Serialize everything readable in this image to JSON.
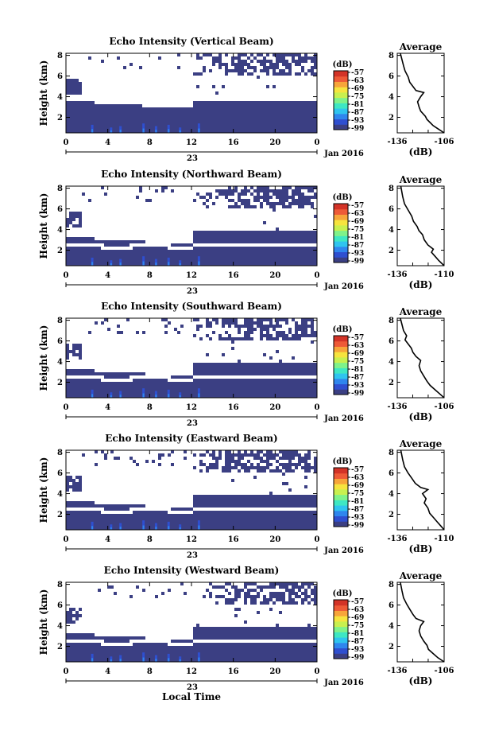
{
  "colors": {
    "echo": "#3b3f83",
    "colormap": [
      "#3b3f83",
      "#2f4fd0",
      "#2f86ee",
      "#2fc4ef",
      "#3ee7c3",
      "#7ff28a",
      "#c8f04f",
      "#f6e43e",
      "#f7a53a",
      "#ee5a37",
      "#d33327"
    ]
  },
  "colorbar": {
    "unit": "(dB)",
    "ticks": [
      "-57",
      "-63",
      "-69",
      "-75",
      "-81",
      "-87",
      "-93",
      "-99"
    ]
  },
  "shared": {
    "date_label": "Jan 2016",
    "x_axis_label": "Local Time",
    "day_label": "23"
  },
  "chart_data": [
    {
      "type": "heatmap",
      "title": "Echo Intensity (Vertical Beam)",
      "ylabel": "Height (km)",
      "x_ticks": [
        "0",
        "4",
        "8",
        "12",
        "16",
        "20",
        "0"
      ],
      "y_ticks": [
        "2",
        "4",
        "6",
        "8"
      ],
      "xlim": [
        0,
        24
      ],
      "ylim": [
        0.5,
        8.2
      ],
      "profile": {
        "title": "Average",
        "xlabel": "(dB)",
        "x_ticks": [
          "-136",
          "-106"
        ],
        "xlim": [
          -136,
          -106
        ],
        "y_ticks": [
          "2",
          "4",
          "6",
          "8"
        ],
        "ylim": [
          0.5,
          8.2
        ],
        "points": [
          [
            -106,
            0.5
          ],
          [
            -110,
            0.9
          ],
          [
            -113,
            1.2
          ],
          [
            -115,
            1.5
          ],
          [
            -117,
            1.8
          ],
          [
            -118,
            2.1
          ],
          [
            -121,
            2.6
          ],
          [
            -122,
            3.0
          ],
          [
            -123,
            3.5
          ],
          [
            -121,
            4.0
          ],
          [
            -119,
            4.4
          ],
          [
            -124,
            4.6
          ],
          [
            -126,
            5.0
          ],
          [
            -128,
            5.4
          ],
          [
            -129,
            5.9
          ],
          [
            -131,
            6.5
          ],
          [
            -132,
            7.0
          ],
          [
            -133,
            7.6
          ],
          [
            -134,
            8.2
          ]
        ]
      }
    },
    {
      "type": "heatmap",
      "title": "Echo Intensity (Northward Beam)",
      "ylabel": "Height (km)",
      "x_ticks": [
        "0",
        "4",
        "8",
        "12",
        "16",
        "20",
        "0"
      ],
      "y_ticks": [
        "2",
        "4",
        "6",
        "8"
      ],
      "xlim": [
        0,
        24
      ],
      "ylim": [
        0.5,
        8.2
      ],
      "profile": {
        "title": "Average",
        "xlabel": "(dB)",
        "x_ticks": [
          "-136",
          "-110"
        ],
        "xlim": [
          -136,
          -110
        ],
        "y_ticks": [
          "2",
          "4",
          "6",
          "8"
        ],
        "ylim": [
          0.5,
          8.2
        ],
        "points": [
          [
            -110,
            0.5
          ],
          [
            -113,
            1.0
          ],
          [
            -115,
            1.4
          ],
          [
            -117,
            1.8
          ],
          [
            -116,
            2.1
          ],
          [
            -119,
            2.5
          ],
          [
            -121,
            3.0
          ],
          [
            -122,
            3.5
          ],
          [
            -124,
            3.9
          ],
          [
            -125,
            4.3
          ],
          [
            -127,
            4.8
          ],
          [
            -128,
            5.3
          ],
          [
            -130,
            5.9
          ],
          [
            -132,
            6.5
          ],
          [
            -133,
            7.2
          ],
          [
            -134,
            8.2
          ]
        ]
      }
    },
    {
      "type": "heatmap",
      "title": "Echo Intensity (Southward Beam)",
      "ylabel": "Height (km)",
      "x_ticks": [
        "0",
        "4",
        "8",
        "12",
        "16",
        "20",
        "0"
      ],
      "y_ticks": [
        "2",
        "4",
        "6",
        "8"
      ],
      "xlim": [
        0,
        24
      ],
      "ylim": [
        0.5,
        8.2
      ],
      "profile": {
        "title": "Average",
        "xlabel": "(dB)",
        "x_ticks": [
          "-136",
          "-106"
        ],
        "xlim": [
          -136,
          -106
        ],
        "y_ticks": [
          "2",
          "4",
          "6",
          "8"
        ],
        "ylim": [
          0.5,
          8.2
        ],
        "points": [
          [
            -106,
            0.5
          ],
          [
            -109,
            0.9
          ],
          [
            -112,
            1.3
          ],
          [
            -115,
            1.7
          ],
          [
            -117,
            2.1
          ],
          [
            -119,
            2.6
          ],
          [
            -121,
            3.1
          ],
          [
            -122,
            3.6
          ],
          [
            -121,
            4.1
          ],
          [
            -124,
            4.5
          ],
          [
            -126,
            4.9
          ],
          [
            -127,
            5.3
          ],
          [
            -129,
            5.7
          ],
          [
            -131,
            6.1
          ],
          [
            -130,
            6.5
          ],
          [
            -132,
            7.0
          ],
          [
            -134,
            8.2
          ]
        ]
      }
    },
    {
      "type": "heatmap",
      "title": "Echo Intensity (Eastward Beam)",
      "ylabel": "Height (km)",
      "x_ticks": [
        "0",
        "4",
        "8",
        "12",
        "16",
        "20",
        "0"
      ],
      "y_ticks": [
        "2",
        "4",
        "6",
        "8"
      ],
      "xlim": [
        0,
        24
      ],
      "ylim": [
        0.5,
        8.2
      ],
      "profile": {
        "title": "Average",
        "xlabel": "(dB)",
        "x_ticks": [
          "-136",
          "-110"
        ],
        "xlim": [
          -136,
          -110
        ],
        "y_ticks": [
          "2",
          "4",
          "6",
          "8"
        ],
        "ylim": [
          0.5,
          8.2
        ],
        "points": [
          [
            -110,
            0.5
          ],
          [
            -112,
            0.9
          ],
          [
            -114,
            1.3
          ],
          [
            -116,
            1.7
          ],
          [
            -118,
            2.1
          ],
          [
            -119,
            2.6
          ],
          [
            -121,
            3.1
          ],
          [
            -120,
            3.5
          ],
          [
            -122,
            4.0
          ],
          [
            -119,
            4.4
          ],
          [
            -123,
            4.6
          ],
          [
            -126,
            5.0
          ],
          [
            -128,
            5.5
          ],
          [
            -130,
            6.0
          ],
          [
            -132,
            6.6
          ],
          [
            -133,
            7.3
          ],
          [
            -134,
            8.2
          ]
        ]
      }
    },
    {
      "type": "heatmap",
      "title": "Echo Intensity (Westward Beam)",
      "ylabel": "Height (km)",
      "x_ticks": [
        "0",
        "4",
        "8",
        "12",
        "16",
        "20",
        "0"
      ],
      "y_ticks": [
        "2",
        "4",
        "6",
        "8"
      ],
      "xlim": [
        0,
        24
      ],
      "ylim": [
        0.5,
        8.2
      ],
      "profile": {
        "title": "Average",
        "xlabel": "(dB)",
        "x_ticks": [
          "-136",
          "-106"
        ],
        "xlim": [
          -136,
          -106
        ],
        "y_ticks": [
          "2",
          "4",
          "6",
          "8"
        ],
        "ylim": [
          0.5,
          8.2
        ],
        "points": [
          [
            -106,
            0.5
          ],
          [
            -110,
            0.9
          ],
          [
            -113,
            1.3
          ],
          [
            -116,
            1.7
          ],
          [
            -117,
            2.1
          ],
          [
            -119,
            2.5
          ],
          [
            -121,
            3.0
          ],
          [
            -122,
            3.5
          ],
          [
            -121,
            4.0
          ],
          [
            -119,
            4.4
          ],
          [
            -124,
            4.7
          ],
          [
            -126,
            5.1
          ],
          [
            -128,
            5.6
          ],
          [
            -130,
            6.1
          ],
          [
            -132,
            6.7
          ],
          [
            -133,
            7.4
          ],
          [
            -134,
            8.2
          ]
        ]
      }
    }
  ]
}
